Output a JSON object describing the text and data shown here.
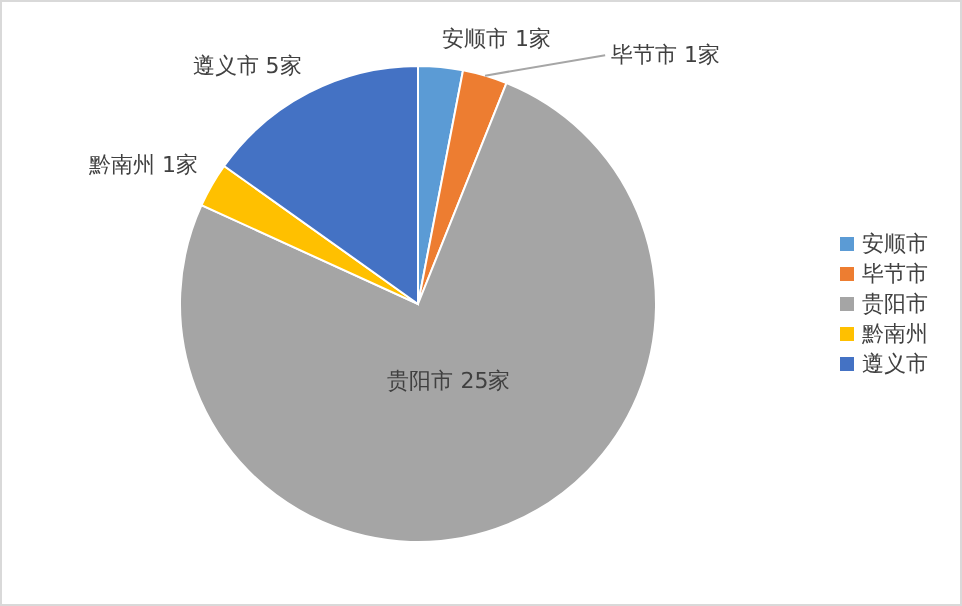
{
  "chart_data": {
    "type": "pie",
    "categories": [
      "安顺市",
      "毕节市",
      "贵阳市",
      "黔南州",
      "遵义市"
    ],
    "values": [
      1,
      1,
      25,
      1,
      5
    ],
    "value_labels": [
      "1家",
      "1家",
      "25家",
      "1家",
      "5家"
    ],
    "colors": [
      "#5b9bd5",
      "#ed7d31",
      "#a5a5a5",
      "#ffc000",
      "#4472c4"
    ],
    "legend": "right"
  }
}
